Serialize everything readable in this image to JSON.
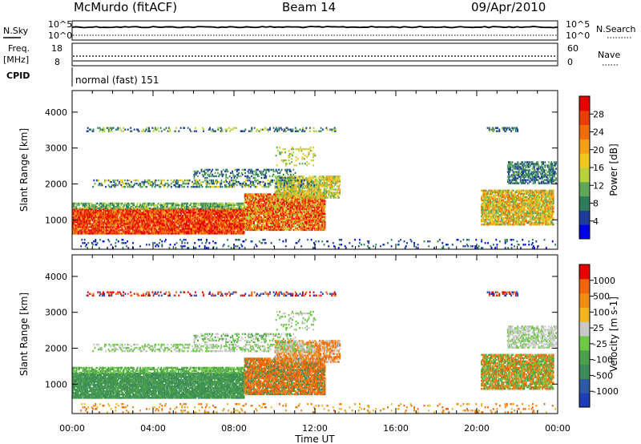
{
  "header": {
    "station": "McMurdo (fitACF)",
    "beam": "Beam 14",
    "date": "09/Apr/2010"
  },
  "top_panels": {
    "nsky_label": "N.Sky",
    "nsky_ticks": [
      "10^5",
      "10^0"
    ],
    "nsearch_label": "N.Search",
    "freq_label_line1": "Freq.",
    "freq_label_line2": "[MHz]",
    "freq_ticks": [
      "18",
      "8"
    ],
    "nave_label": "Nave",
    "nave_ticks": [
      "60",
      "0"
    ],
    "cpid_label": "CPID",
    "cpid_value": "normal (fast) 151"
  },
  "chart_data": [
    {
      "type": "heatmap",
      "name": "power",
      "ylabel": "Slant Range [km]",
      "xlabel": "Time UT",
      "xlim": [
        0,
        24
      ],
      "ylim": [
        180,
        4600
      ],
      "x_ticks": [
        "00:00",
        "04:00",
        "08:00",
        "12:00",
        "16:00",
        "20:00",
        "00:00"
      ],
      "y_ticks": [
        1000,
        2000,
        3000,
        4000
      ],
      "colorbar": {
        "label": "Power [dB]",
        "ticks": [
          "28",
          "24",
          "20",
          "16",
          "12",
          "8",
          "4"
        ],
        "colors": [
          "#0000e6",
          "#1e3c9a",
          "#2d7d5a",
          "#5fa85a",
          "#b8d23c",
          "#f0c81e",
          "#f5a014",
          "#f06e0a",
          "#eb3c05",
          "#e60000"
        ]
      }
    },
    {
      "type": "heatmap",
      "name": "velocity",
      "ylabel": "Slant Range [km]",
      "xlabel": "Time UT",
      "xlim": [
        0,
        24
      ],
      "ylim": [
        180,
        4600
      ],
      "x_ticks": [
        "00:00",
        "04:00",
        "08:00",
        "12:00",
        "16:00",
        "20:00",
        "00:00"
      ],
      "y_ticks": [
        1000,
        2000,
        3000,
        4000
      ],
      "colorbar": {
        "label": "Velocity [m s-1]",
        "ticks": [
          "1000",
          "500",
          "100",
          "25",
          "-25",
          "-100",
          "-500",
          "-1000"
        ],
        "colors": [
          "#1e3cb4",
          "#2d5aa0",
          "#3c8c5a",
          "#4ba04b",
          "#6ec846",
          "#c8c8c8",
          "#f0b41e",
          "#f08c14",
          "#f0640a",
          "#e60000"
        ]
      }
    }
  ]
}
